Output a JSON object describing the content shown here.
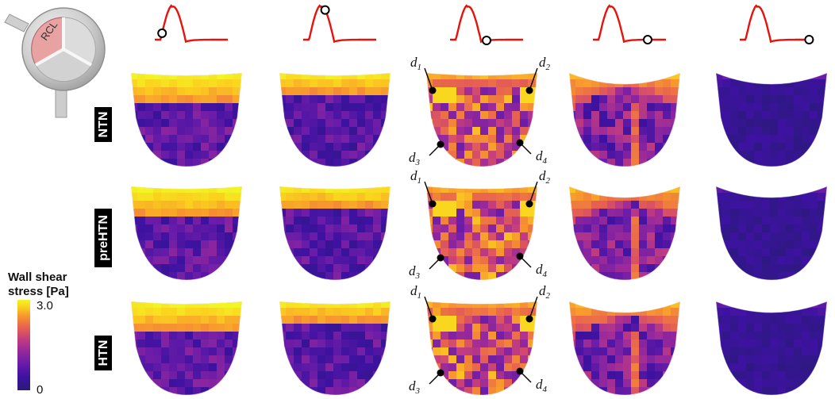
{
  "figure": {
    "valve_icon": {
      "label": "RCL"
    },
    "colorbar": {
      "title_line1": "Wall shear",
      "title_line2": "stress [Pa]",
      "max_label": "3.0",
      "min_label": "0",
      "min": 0,
      "max": 3.0,
      "colormap": [
        "#2a1a7a",
        "#3d12a0",
        "#6a1ca8",
        "#9b2a9a",
        "#c8407a",
        "#e8634f",
        "#f7962e",
        "#fbd01e",
        "#f2f524"
      ]
    },
    "rows": [
      {
        "label": "NTN"
      },
      {
        "label": "preHTN"
      },
      {
        "label": "HTN"
      }
    ],
    "columns": [
      {
        "waveform_marker_phase": 0.1
      },
      {
        "waveform_marker_phase": 0.3
      },
      {
        "waveform_marker_phase": 0.5
      },
      {
        "waveform_marker_phase": 0.75
      },
      {
        "waveform_marker_phase": 0.95
      }
    ],
    "probe_points": [
      {
        "base": "d",
        "sub": "1"
      },
      {
        "base": "d",
        "sub": "2"
      },
      {
        "base": "d",
        "sub": "3"
      },
      {
        "base": "d",
        "sub": "4"
      }
    ],
    "colors": {
      "waveform": "#e8120c",
      "label_box": "#000000",
      "low_stress": "#3a129a",
      "high_stress": "#f2f524"
    }
  }
}
